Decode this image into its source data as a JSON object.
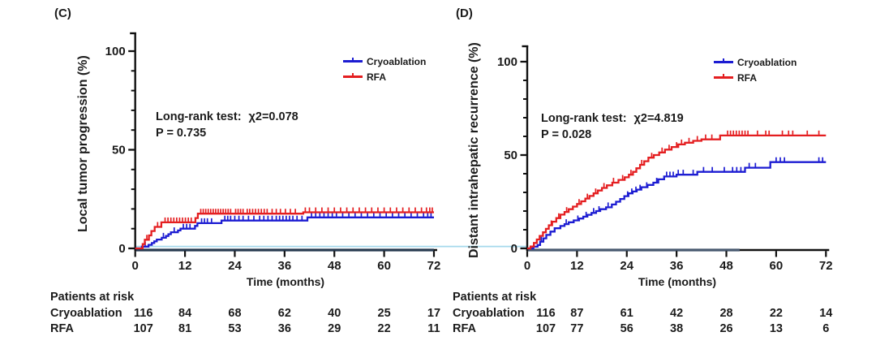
{
  "baseline_zero_line_color": "#a6d9ec",
  "axis_color": "#111111",
  "chart_data": [
    {
      "id": "C",
      "type": "line",
      "panel_label": "(C)",
      "ylabel": "Local tumor progression (%)",
      "xlabel": "Time (months)",
      "xlim": [
        0,
        72
      ],
      "ylim": [
        0,
        100
      ],
      "x_ticks": [
        0,
        12,
        24,
        36,
        48,
        60,
        72
      ],
      "y_ticks_major": [
        0,
        50,
        100
      ],
      "y_ticks_minor": [
        10,
        20,
        30,
        40,
        60,
        70,
        80,
        90
      ],
      "stats": {
        "test_label": "Long-rank test:",
        "chi_square": "χ2=0.078",
        "p_value": "P = 0.735"
      },
      "legend": {
        "position": "top-right",
        "entries": [
          {
            "label": "Cryoablation",
            "color": "#1c1cd2"
          },
          {
            "label": "RFA",
            "color": "#e41e20"
          }
        ]
      },
      "series": [
        {
          "name": "Cryoablation",
          "color": "#1c1cd2",
          "steps": [
            [
              0,
              0
            ],
            [
              1.6,
              0.9
            ],
            [
              3.2,
              1.8
            ],
            [
              4,
              2.7
            ],
            [
              4.6,
              3.6
            ],
            [
              5.2,
              4.5
            ],
            [
              6.4,
              5.4
            ],
            [
              7.4,
              6.3
            ],
            [
              8,
              7.2
            ],
            [
              8.6,
              8.2
            ],
            [
              10.3,
              9.1
            ],
            [
              10.9,
              10
            ],
            [
              14.4,
              11.4
            ],
            [
              15,
              12.8
            ],
            [
              20.8,
              14.1
            ],
            [
              41.5,
              15.7
            ]
          ],
          "censor_times": [
            2.4,
            6.8,
            9.4,
            11.6,
            12.4,
            13.2,
            16,
            16.7,
            17.4,
            18.4,
            21.6,
            22.3,
            23,
            24,
            25,
            26,
            27.3,
            28.6,
            30,
            31,
            32,
            33,
            34,
            34.8,
            35.6,
            36.4,
            37.2,
            38,
            39,
            40.2,
            42.5,
            43.5,
            44.5,
            45.5,
            46.5,
            47.5,
            48.5,
            50,
            51.5,
            53,
            54.5,
            56,
            57.5,
            59,
            60.5,
            62,
            63.5,
            65,
            66.5,
            68,
            69.5,
            70.5,
            71.3
          ]
        },
        {
          "name": "RFA",
          "color": "#e41e20",
          "steps": [
            [
              0,
              0
            ],
            [
              1.8,
              2.2
            ],
            [
              2.3,
              4.4
            ],
            [
              3.3,
              6.6
            ],
            [
              3.9,
              8.8
            ],
            [
              4.7,
              10.9
            ],
            [
              6.3,
              13.2
            ],
            [
              14.5,
              15.4
            ],
            [
              15.1,
              17.6
            ],
            [
              40.5,
              18.3
            ]
          ],
          "censor_times": [
            2.8,
            5.4,
            7.2,
            7.9,
            8.6,
            9.3,
            10,
            10.7,
            11.4,
            12.1,
            12.8,
            13.5,
            15.8,
            16.4,
            17,
            17.6,
            18.2,
            18.8,
            19.4,
            20,
            20.6,
            21.2,
            21.8,
            22.4,
            23,
            24.2,
            24.8,
            25.4,
            26,
            27,
            27.6,
            28.3,
            29,
            29.7,
            30.4,
            31.1,
            31.8,
            33,
            34,
            35,
            36.2,
            37.4,
            38.6,
            41,
            42,
            43.5,
            45,
            46.5,
            48,
            49.5,
            51,
            52.5,
            54,
            55.5,
            57,
            58.5,
            60,
            61.5,
            63,
            64.5,
            66,
            67.5,
            69,
            70.2,
            71,
            71.6
          ]
        }
      ],
      "at_risk": {
        "title": "Patients at risk",
        "time_points": [
          0,
          12,
          24,
          36,
          48,
          60,
          72
        ],
        "rows": [
          {
            "label": "Cryoablation",
            "counts": [
              116,
              84,
              68,
              62,
              40,
              25,
              17
            ]
          },
          {
            "label": "RFA",
            "counts": [
              107,
              81,
              53,
              36,
              29,
              22,
              11
            ]
          }
        ]
      }
    },
    {
      "id": "D",
      "type": "line",
      "panel_label": "(D)",
      "ylabel": "Distant intrahepatic recurrence (%)",
      "xlabel": "Time (months)",
      "xlim": [
        0,
        72
      ],
      "ylim": [
        0,
        100
      ],
      "x_ticks": [
        0,
        12,
        24,
        36,
        48,
        60,
        72
      ],
      "y_ticks_major": [
        0,
        50,
        100
      ],
      "y_ticks_minor": [
        10,
        20,
        30,
        40,
        60,
        70,
        80,
        90
      ],
      "stats": {
        "test_label": "Long-rank test:",
        "chi_square": "χ2=4.819",
        "p_value": "P = 0.028"
      },
      "legend": {
        "position": "top-right",
        "entries": [
          {
            "label": "Cryoablation",
            "color": "#1c1cd2"
          },
          {
            "label": "RFA",
            "color": "#e41e20"
          }
        ]
      },
      "series": [
        {
          "name": "Cryoablation",
          "color": "#1c1cd2",
          "steps": [
            [
              0,
              0
            ],
            [
              1.5,
              0.9
            ],
            [
              2.5,
              1.8
            ],
            [
              3.1,
              3.6
            ],
            [
              3.9,
              5.4
            ],
            [
              4.6,
              7.2
            ],
            [
              5.6,
              9
            ],
            [
              6.6,
              10.8
            ],
            [
              8,
              12
            ],
            [
              9,
              13
            ],
            [
              10,
              14
            ],
            [
              11.2,
              15
            ],
            [
              12.5,
              16
            ],
            [
              13.5,
              17
            ],
            [
              14.5,
              18
            ],
            [
              15.5,
              19
            ],
            [
              16.6,
              20
            ],
            [
              17.6,
              21
            ],
            [
              19,
              22
            ],
            [
              20.4,
              23.5
            ],
            [
              21.4,
              25
            ],
            [
              22.4,
              26.5
            ],
            [
              23.4,
              28
            ],
            [
              24.4,
              29.5
            ],
            [
              25.4,
              30.5
            ],
            [
              26.4,
              31.5
            ],
            [
              27.5,
              32.8
            ],
            [
              29,
              34
            ],
            [
              30.4,
              35.2
            ],
            [
              31.6,
              37
            ],
            [
              33,
              38.5
            ],
            [
              36,
              39.5
            ],
            [
              41,
              41
            ],
            [
              52.5,
              43.2
            ],
            [
              58.6,
              46.2
            ]
          ],
          "censor_times": [
            3.4,
            9.4,
            12.2,
            14.2,
            16,
            17.3,
            19.5,
            24.2,
            25.2,
            26.2,
            27.2,
            28.8,
            31.2,
            33.6,
            34.4,
            35.2,
            36.4,
            37.6,
            40,
            42.5,
            44.6,
            47.5,
            49.5,
            50.5,
            51.5,
            53.5,
            55,
            60,
            61,
            62,
            70.3,
            71.2
          ]
        },
        {
          "name": "RFA",
          "color": "#e41e20",
          "steps": [
            [
              0,
              0
            ],
            [
              0.8,
              1
            ],
            [
              1.6,
              2.9
            ],
            [
              2.3,
              4.8
            ],
            [
              3,
              6.7
            ],
            [
              3.8,
              8.6
            ],
            [
              4.5,
              10.5
            ],
            [
              5.2,
              12.4
            ],
            [
              6,
              14.3
            ],
            [
              7,
              16.2
            ],
            [
              8,
              18.1
            ],
            [
              9,
              19.5
            ],
            [
              10,
              21
            ],
            [
              11,
              22.4
            ],
            [
              12,
              23.8
            ],
            [
              13,
              25.2
            ],
            [
              14,
              26.7
            ],
            [
              15,
              28.1
            ],
            [
              16,
              29.5
            ],
            [
              17,
              31
            ],
            [
              18,
              32.4
            ],
            [
              19.2,
              33.8
            ],
            [
              20.5,
              35.2
            ],
            [
              22,
              36.7
            ],
            [
              23.5,
              38.1
            ],
            [
              24.5,
              39.5
            ],
            [
              25.5,
              41
            ],
            [
              26.3,
              42.9
            ],
            [
              27.2,
              44.8
            ],
            [
              28.2,
              46.7
            ],
            [
              29.2,
              48.6
            ],
            [
              30.5,
              50
            ],
            [
              31.8,
              51.4
            ],
            [
              33.2,
              52.9
            ],
            [
              34.8,
              54.3
            ],
            [
              36.4,
              55.7
            ],
            [
              38,
              56.6
            ],
            [
              40,
              57.6
            ],
            [
              42,
              58.4
            ],
            [
              46.5,
              60.5
            ]
          ],
          "censor_times": [
            5.8,
            7.6,
            9.5,
            12.5,
            14.5,
            16.5,
            18.5,
            20.8,
            23,
            25,
            27.6,
            30,
            32.5,
            34.2,
            36,
            37.2,
            39,
            41,
            43,
            44.5,
            48.3,
            49,
            49.7,
            50.4,
            51.1,
            51.8,
            52.5,
            53.2,
            55.5,
            57.5,
            58.3,
            61.5,
            63,
            64,
            67.5,
            70.3
          ]
        }
      ],
      "at_risk": {
        "title": "Patients at risk",
        "time_points": [
          0,
          12,
          24,
          36,
          48,
          60,
          72
        ],
        "rows": [
          {
            "label": "Cryoablation",
            "counts": [
              116,
              87,
              61,
              42,
              28,
              22,
              14
            ]
          },
          {
            "label": "RFA",
            "counts": [
              107,
              77,
              56,
              38,
              26,
              13,
              6
            ]
          }
        ]
      }
    }
  ]
}
